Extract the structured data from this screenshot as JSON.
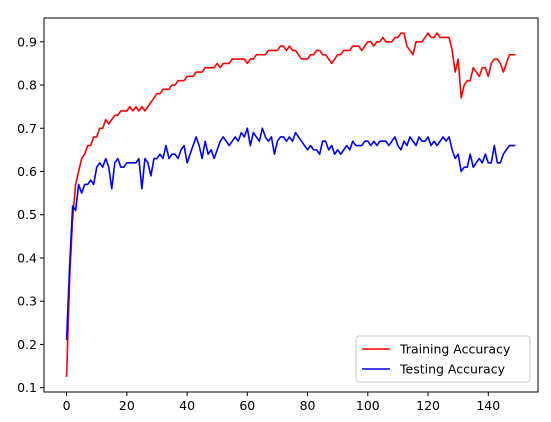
{
  "chart_data": {
    "type": "line",
    "title": "",
    "xlabel": "",
    "ylabel": "",
    "xlim": [
      -7.5,
      156.5
    ],
    "ylim": [
      0.09,
      0.955
    ],
    "xticks": [
      0,
      20,
      40,
      60,
      80,
      100,
      120,
      140
    ],
    "yticks": [
      0.1,
      0.2,
      0.3,
      0.4,
      0.5,
      0.6,
      0.7,
      0.8,
      0.9
    ],
    "grid": false,
    "legend_position": "bottom-right",
    "series": [
      {
        "name": "Training Accuracy",
        "color": "#ff0000",
        "values": [
          0.125,
          0.35,
          0.49,
          0.57,
          0.6,
          0.63,
          0.64,
          0.66,
          0.66,
          0.68,
          0.68,
          0.7,
          0.7,
          0.72,
          0.71,
          0.72,
          0.73,
          0.73,
          0.74,
          0.74,
          0.74,
          0.75,
          0.74,
          0.75,
          0.74,
          0.75,
          0.74,
          0.75,
          0.76,
          0.77,
          0.78,
          0.78,
          0.79,
          0.79,
          0.79,
          0.8,
          0.8,
          0.81,
          0.81,
          0.81,
          0.82,
          0.82,
          0.82,
          0.83,
          0.83,
          0.83,
          0.84,
          0.84,
          0.84,
          0.84,
          0.85,
          0.84,
          0.85,
          0.85,
          0.85,
          0.86,
          0.86,
          0.86,
          0.86,
          0.86,
          0.85,
          0.86,
          0.86,
          0.87,
          0.87,
          0.87,
          0.87,
          0.88,
          0.88,
          0.88,
          0.88,
          0.89,
          0.89,
          0.88,
          0.89,
          0.88,
          0.88,
          0.87,
          0.86,
          0.86,
          0.86,
          0.87,
          0.87,
          0.88,
          0.88,
          0.87,
          0.87,
          0.86,
          0.85,
          0.86,
          0.87,
          0.87,
          0.88,
          0.88,
          0.88,
          0.89,
          0.89,
          0.89,
          0.88,
          0.89,
          0.9,
          0.9,
          0.89,
          0.9,
          0.9,
          0.91,
          0.9,
          0.9,
          0.9,
          0.91,
          0.91,
          0.92,
          0.92,
          0.89,
          0.88,
          0.87,
          0.9,
          0.9,
          0.9,
          0.91,
          0.92,
          0.91,
          0.91,
          0.92,
          0.91,
          0.91,
          0.91,
          0.91,
          0.88,
          0.83,
          0.86,
          0.77,
          0.8,
          0.81,
          0.81,
          0.84,
          0.83,
          0.82,
          0.84,
          0.84,
          0.82,
          0.85,
          0.86,
          0.86,
          0.85,
          0.83,
          0.85,
          0.87,
          0.87,
          0.87
        ]
      },
      {
        "name": "Testing Accuracy",
        "color": "#0000ff",
        "values": [
          0.21,
          0.38,
          0.52,
          0.51,
          0.57,
          0.55,
          0.57,
          0.57,
          0.58,
          0.57,
          0.61,
          0.62,
          0.61,
          0.63,
          0.61,
          0.56,
          0.62,
          0.63,
          0.61,
          0.61,
          0.62,
          0.62,
          0.62,
          0.62,
          0.63,
          0.56,
          0.63,
          0.62,
          0.59,
          0.63,
          0.63,
          0.64,
          0.63,
          0.66,
          0.63,
          0.64,
          0.64,
          0.63,
          0.65,
          0.66,
          0.62,
          0.64,
          0.66,
          0.68,
          0.66,
          0.63,
          0.67,
          0.64,
          0.65,
          0.63,
          0.65,
          0.67,
          0.68,
          0.67,
          0.66,
          0.67,
          0.68,
          0.67,
          0.69,
          0.68,
          0.7,
          0.66,
          0.69,
          0.68,
          0.67,
          0.7,
          0.68,
          0.67,
          0.68,
          0.64,
          0.67,
          0.68,
          0.68,
          0.67,
          0.68,
          0.67,
          0.69,
          0.68,
          0.67,
          0.66,
          0.65,
          0.66,
          0.65,
          0.65,
          0.64,
          0.67,
          0.67,
          0.65,
          0.66,
          0.64,
          0.65,
          0.64,
          0.65,
          0.66,
          0.65,
          0.67,
          0.66,
          0.66,
          0.66,
          0.67,
          0.67,
          0.66,
          0.67,
          0.66,
          0.67,
          0.67,
          0.67,
          0.66,
          0.67,
          0.68,
          0.66,
          0.65,
          0.67,
          0.66,
          0.68,
          0.67,
          0.66,
          0.68,
          0.67,
          0.67,
          0.68,
          0.66,
          0.67,
          0.66,
          0.67,
          0.68,
          0.67,
          0.68,
          0.65,
          0.63,
          0.64,
          0.6,
          0.61,
          0.61,
          0.64,
          0.61,
          0.62,
          0.63,
          0.62,
          0.64,
          0.62,
          0.62,
          0.66,
          0.62,
          0.62,
          0.64,
          0.65,
          0.66,
          0.66,
          0.66
        ]
      }
    ]
  }
}
